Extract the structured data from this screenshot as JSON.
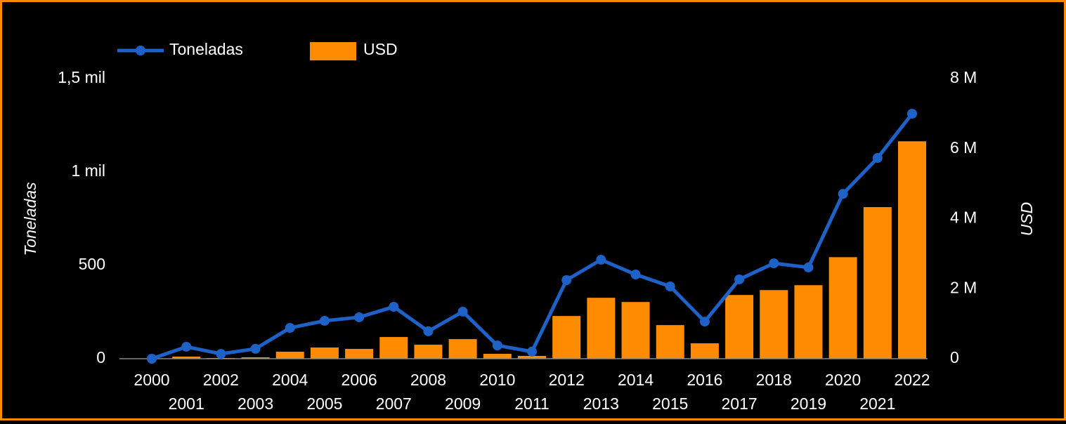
{
  "chart_data": {
    "type": "bar",
    "y_label": "Toneladas",
    "y2_label": "USD",
    "categories": [
      "2000",
      "2001",
      "2002",
      "2003",
      "2004",
      "2005",
      "2006",
      "2007",
      "2008",
      "2009",
      "2010",
      "2011",
      "2012",
      "2013",
      "2014",
      "2015",
      "2016",
      "2017",
      "2018",
      "2019",
      "2020",
      "2021",
      "2022"
    ],
    "series": [
      {
        "name": "Toneladas",
        "type": "line",
        "color": "#1e62c8",
        "axis": "y",
        "values": [
          0,
          64,
          26,
          53,
          165,
          203,
          222,
          278,
          147,
          252,
          71,
          38,
          421,
          530,
          451,
          387,
          199,
          425,
          511,
          489,
          883,
          1075,
          1312
        ]
      },
      {
        "name": "USD",
        "type": "bar",
        "color": "#ff8c00",
        "axis": "y2",
        "values": [
          0,
          60000,
          20000,
          40000,
          200000,
          320000,
          280000,
          620000,
          400000,
          560000,
          140000,
          80000,
          1220000,
          1740000,
          1620000,
          960000,
          440000,
          1820000,
          1960000,
          2100000,
          2900000,
          4330000,
          6210000
        ]
      }
    ],
    "ylim": [
      0,
      1500
    ],
    "yticks": [
      0,
      500,
      {
        "value": 1000,
        "label": "1 mil"
      },
      {
        "value": 1500,
        "label": "1,5 mil"
      }
    ],
    "y2lim": [
      0,
      8000000
    ],
    "y2ticks": [
      0,
      {
        "value": 2000000,
        "label": "2 M"
      },
      {
        "value": 4000000,
        "label": "4 M"
      },
      {
        "value": 6000000,
        "label": "6 M"
      },
      {
        "value": 8000000,
        "label": "8 M"
      }
    ],
    "grid": false,
    "legend": "top-left"
  }
}
